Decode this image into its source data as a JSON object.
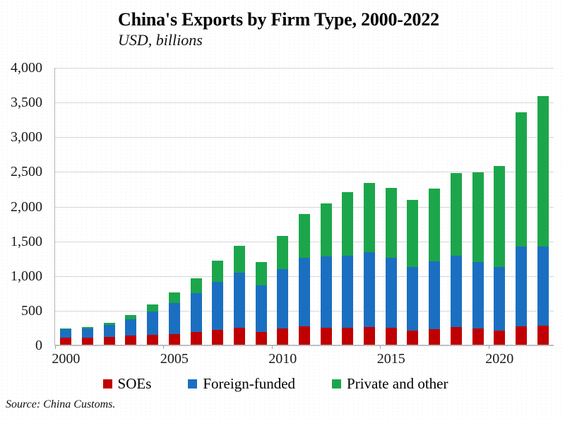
{
  "header": {
    "title": "China's Exports by Firm Type, 2000-2022",
    "subtitle": "USD, billions"
  },
  "source_note": "Source:  China Customs.",
  "legend": [
    {
      "label": "SOEs",
      "color": "#C00000"
    },
    {
      "label": "Foreign-funded",
      "color": "#1B6FC1"
    },
    {
      "label": "Private and other",
      "color": "#1CA64B"
    }
  ],
  "chart_data": {
    "type": "bar",
    "stacked": true,
    "title": "China's Exports by Firm Type, 2000-2022",
    "subtitle": "USD, billions",
    "xlabel": "",
    "ylabel": "USD, billions",
    "categories": [
      2000,
      2001,
      2002,
      2003,
      2004,
      2005,
      2006,
      2007,
      2008,
      2009,
      2010,
      2011,
      2012,
      2013,
      2014,
      2015,
      2016,
      2017,
      2018,
      2019,
      2020,
      2021,
      2022
    ],
    "series": [
      {
        "name": "SOEs",
        "color": "#C00000",
        "values": [
          117,
          113,
          123,
          138,
          154,
          168,
          191,
          224,
          258,
          190,
          240,
          270,
          255,
          250,
          265,
          255,
          210,
          230,
          260,
          245,
          212,
          272,
          286
        ]
      },
      {
        "name": "Foreign-funded",
        "color": "#1B6FC1",
        "values": [
          120,
          133,
          170,
          240,
          339,
          444,
          564,
          695,
          790,
          672,
          862,
          995,
          1023,
          1044,
          1075,
          1005,
          917,
          980,
          1036,
          960,
          920,
          1155,
          1139
        ]
      },
      {
        "name": "Private and other",
        "color": "#1CA64B",
        "values": [
          12,
          20,
          33,
          60,
          100,
          150,
          214,
          301,
          383,
          340,
          476,
          633,
          771,
          915,
          1002,
          1013,
          971,
          1053,
          1191,
          1294,
          1458,
          1937,
          2169
        ]
      }
    ],
    "totals": [
      249,
      266,
      326,
      438,
      593,
      762,
      969,
      1220,
      1431,
      1202,
      1578,
      1898,
      2049,
      2209,
      2342,
      2273,
      2098,
      2263,
      2487,
      2499,
      2590,
      3364,
      3594
    ],
    "ylim": [
      0,
      4000
    ],
    "ytick_interval": 500,
    "ytick_labels": [
      "0",
      "500",
      "1,000",
      "1,500",
      "2,000",
      "2,500",
      "3,000",
      "3,500",
      "4,000"
    ],
    "xtick_labels": [
      "2000",
      "2005",
      "2010",
      "2015",
      "2020"
    ],
    "xtick_positions": [
      0,
      5,
      10,
      15,
      20
    ],
    "grid": "horizontal",
    "legend_position": "bottom"
  }
}
